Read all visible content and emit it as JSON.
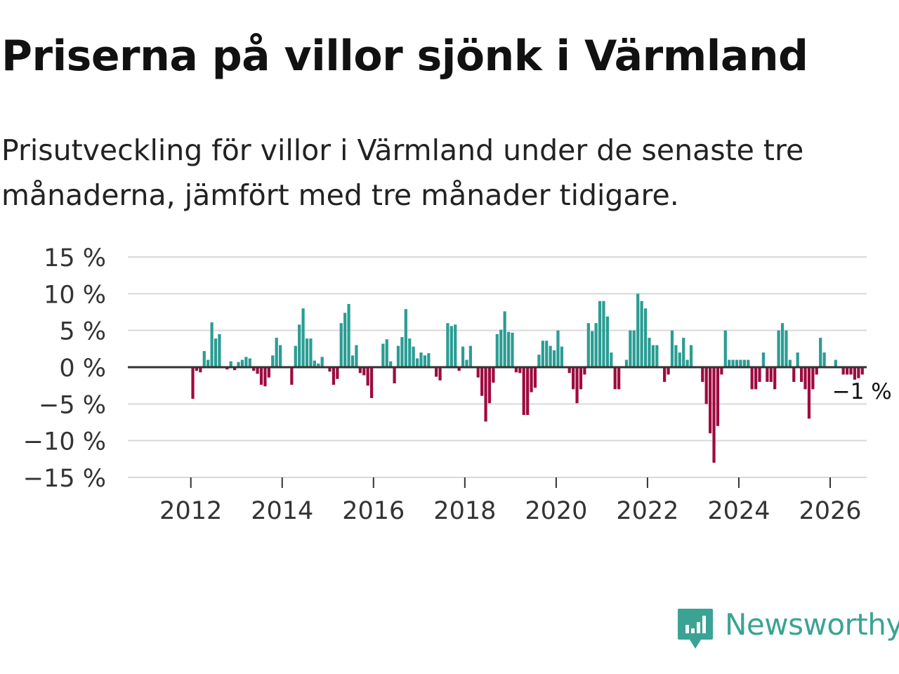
{
  "title": "Priserna på villor sjönk i Värmland",
  "subtitle": "Prisutveckling för villor i Värmland under de senaste tre månaderna, jämfört med tre månader tidigare.",
  "brand": {
    "name": "Newsworthy",
    "icon": "bar-chart-speech-bubble-icon",
    "color": "#3aa394"
  },
  "chart_data": {
    "type": "bar",
    "title": "Priserna på villor sjönk i Värmland",
    "subtitle": "Prisutveckling för villor i Värmland under de senaste tre månaderna, jämfört med tre månader tidigare.",
    "xlabel": "",
    "ylabel": "",
    "x_start": 2011.71,
    "x_step": 0.0833,
    "xlim": [
      2010.62,
      2026.8
    ],
    "ylim": [
      -15,
      15
    ],
    "y_ticks": [
      15,
      10,
      5,
      0,
      -5,
      -10,
      -15
    ],
    "y_tick_labels": [
      "15 %",
      "10 %",
      "5 %",
      "0 %",
      "−5 %",
      "−10 %",
      "−15 %"
    ],
    "x_ticks": [
      2012,
      2014,
      2016,
      2018,
      2020,
      2022,
      2024,
      2026
    ],
    "x_tick_labels": [
      "2012",
      "2014",
      "2016",
      "2018",
      "2020",
      "2022",
      "2024",
      "2026"
    ],
    "grid": true,
    "colors": {
      "positive": "#2a9d93",
      "negative": "#9e0b3f"
    },
    "annotation": {
      "text": "−1 %",
      "point": "last"
    },
    "series": [
      {
        "name": "Prisutveckling",
        "values": [
          0,
          0,
          0,
          0,
          -4.3,
          -0.5,
          -0.7,
          2.2,
          1.0,
          6.1,
          3.9,
          4.5,
          0,
          -0.3,
          0.8,
          -0.4,
          0.7,
          1.0,
          1.4,
          1.2,
          -0.5,
          -0.9,
          -2.4,
          -2.6,
          -1.4,
          1.6,
          4.0,
          3.0,
          0,
          0,
          -2.4,
          2.9,
          5.8,
          8.0,
          3.9,
          3.9,
          0.9,
          0.5,
          1.4,
          0,
          -0.6,
          -2.4,
          -1.6,
          6.0,
          7.4,
          8.6,
          1.6,
          3.0,
          -0.8,
          -1.1,
          -2.5,
          -4.2,
          0,
          0,
          3.2,
          3.8,
          0.8,
          -2.2,
          2.9,
          4.1,
          7.9,
          3.9,
          2.8,
          1.2,
          2.0,
          1.6,
          1.9,
          0,
          -1.3,
          -1.8,
          0,
          6.0,
          5.6,
          5.8,
          -0.5,
          2.8,
          1.0,
          2.9,
          0,
          -1.4,
          -3.9,
          -7.4,
          -4.9,
          -2.1,
          4.5,
          5.1,
          7.6,
          4.8,
          4.7,
          -0.7,
          -0.8,
          -6.5,
          -6.5,
          -3.4,
          -2.8,
          1.7,
          3.6,
          3.6,
          2.9,
          2.3,
          5.0,
          2.8,
          0,
          -0.8,
          -3.0,
          -4.9,
          -3.0,
          -1.0,
          6.0,
          4.9,
          6.0,
          9.0,
          9.0,
          6.9,
          2.0,
          -3.0,
          -3.0,
          0,
          1.0,
          5.0,
          5.0,
          10.0,
          9.0,
          8.0,
          4.0,
          3.0,
          3.0,
          0,
          -2.0,
          -1.0,
          5.0,
          3.0,
          2.0,
          4.0,
          1.0,
          3.0,
          0,
          0,
          -2.0,
          -5.0,
          -9.0,
          -13.0,
          -8.0,
          -1.0,
          5.0,
          1.0,
          1.0,
          1.0,
          1.0,
          1.0,
          1.0,
          -3.0,
          -3.0,
          -2.0,
          2.0,
          -2.0,
          -2.0,
          -3.0,
          5.0,
          6.0,
          5.0,
          1.0,
          -2.0,
          2.0,
          -2.0,
          -3.0,
          -7.0,
          -3.0,
          -1.0,
          4.0,
          2.0,
          0,
          0,
          1.0,
          0,
          -1.0,
          -1.0,
          -1.0,
          -1.7,
          -1.5,
          -1.0
        ]
      }
    ]
  }
}
